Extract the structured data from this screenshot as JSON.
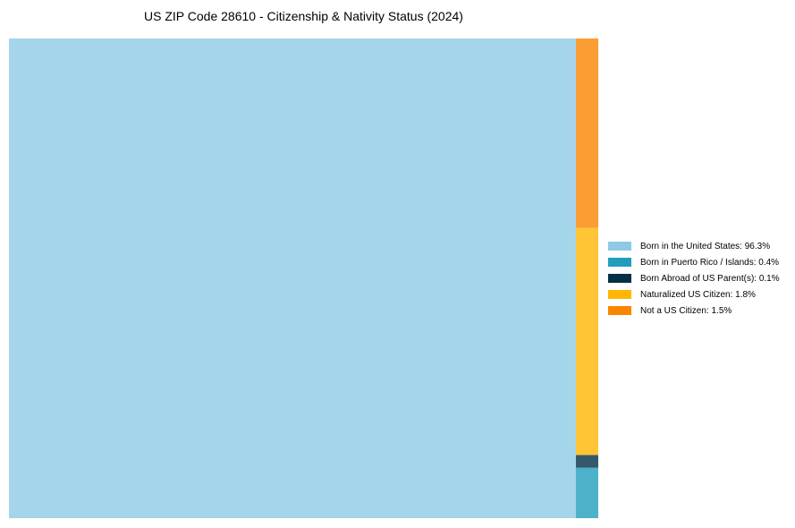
{
  "chart_data": {
    "type": "treemap",
    "title": "US ZIP Code 28610 - Citizenship & Nativity Status (2024)",
    "items": [
      {
        "label": "Born in the United States",
        "value": 96.3,
        "color": "#8ecae6",
        "legend": "Born in the United States: 96.3%"
      },
      {
        "label": "Born in Puerto Rico / Islands",
        "value": 0.4,
        "color": "#219ebc",
        "legend": "Born in Puerto Rico / Islands: 0.4%"
      },
      {
        "label": "Born Abroad of US Parent(s)",
        "value": 0.1,
        "color": "#023047",
        "legend": "Born Abroad of US Parent(s): 0.1%"
      },
      {
        "label": "Naturalized US Citizen",
        "value": 1.8,
        "color": "#ffb703",
        "legend": "Naturalized US Citizen: 1.8%"
      },
      {
        "label": "Not a US Citizen",
        "value": 1.5,
        "color": "#fb8500",
        "legend": "Not a US Citizen: 1.5%"
      }
    ],
    "legend_position": "right"
  }
}
